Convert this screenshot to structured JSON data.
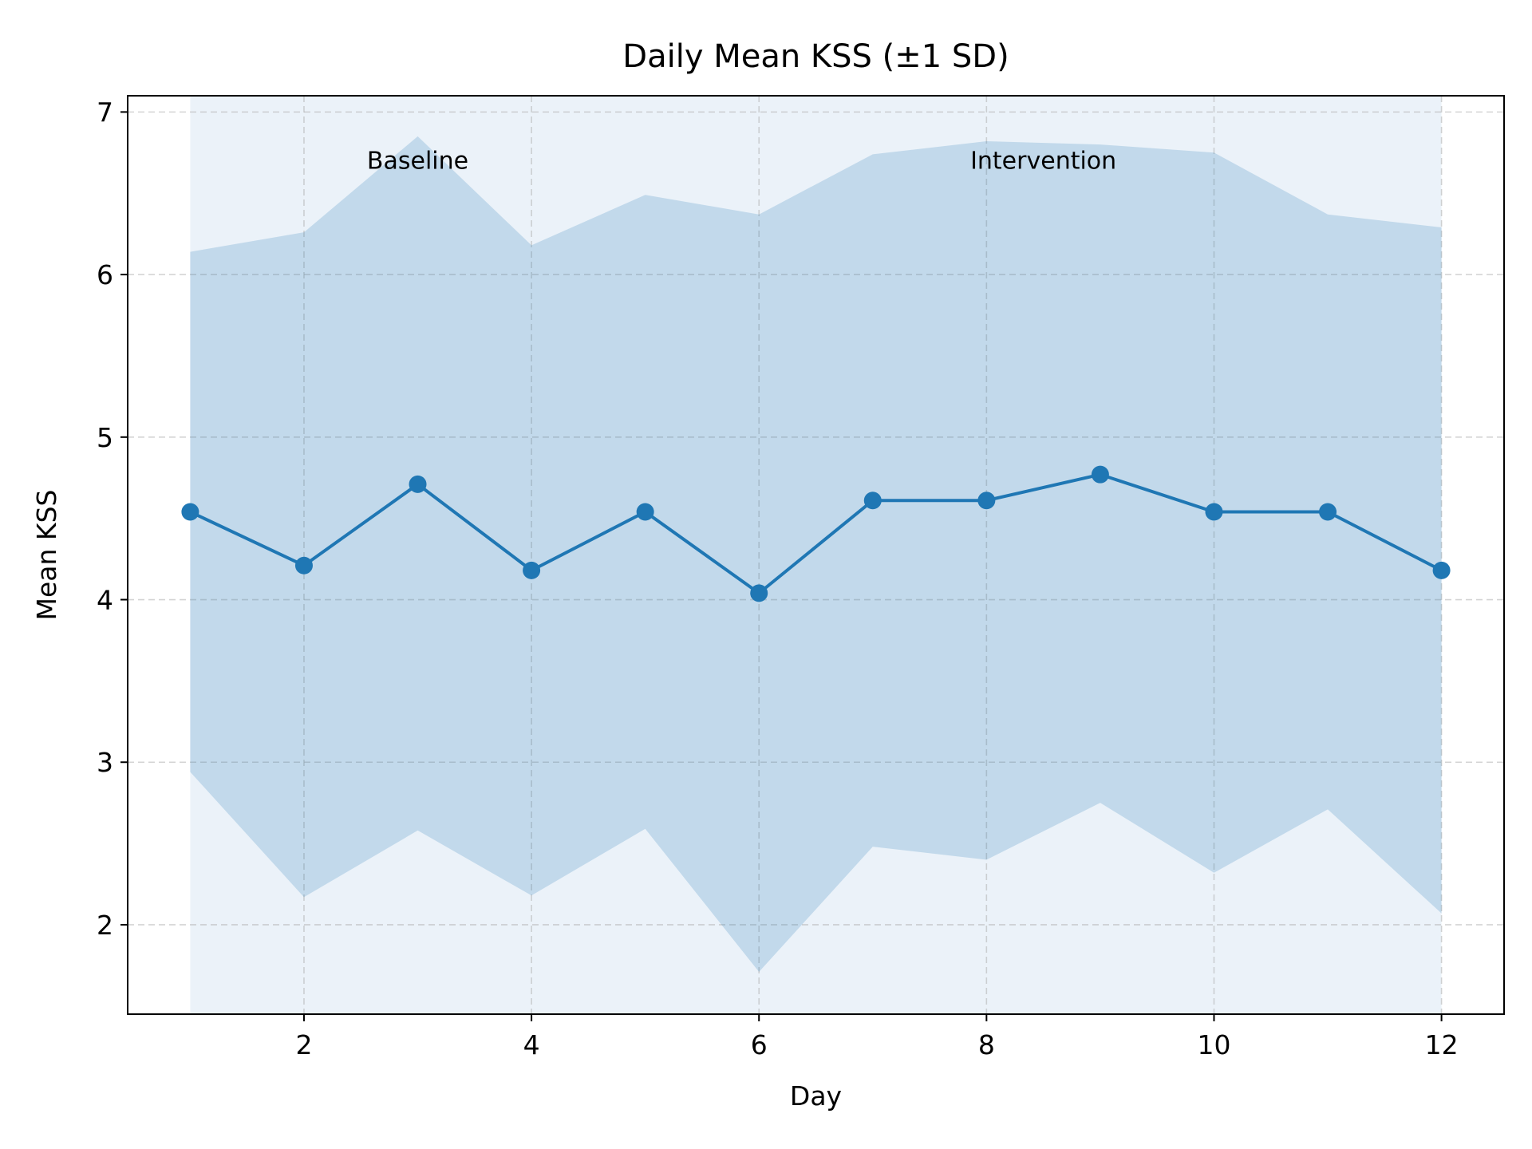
{
  "chart_data": {
    "type": "line",
    "title": "Daily Mean KSS (±1 SD)",
    "xlabel": "Day",
    "ylabel": "Mean KSS",
    "x": [
      1,
      2,
      3,
      4,
      5,
      6,
      7,
      8,
      9,
      10,
      11,
      12
    ],
    "series": [
      {
        "values": [
          4.54,
          4.21,
          4.71,
          4.18,
          4.54,
          4.04,
          4.61,
          4.61,
          4.77,
          4.54,
          4.54,
          4.18
        ],
        "upper": [
          6.14,
          6.26,
          6.85,
          6.18,
          6.49,
          6.37,
          6.74,
          6.82,
          6.8,
          6.75,
          6.37,
          6.29
        ],
        "lower": [
          2.94,
          2.17,
          2.58,
          2.18,
          2.59,
          1.71,
          2.48,
          2.4,
          2.75,
          2.32,
          2.71,
          2.07
        ],
        "color": "#1f77b4"
      }
    ],
    "xticks": [
      "2",
      "4",
      "6",
      "8",
      "10",
      "12"
    ],
    "yticks": [
      "2",
      "3",
      "4",
      "5",
      "6",
      "7"
    ],
    "xlim": [
      0.45,
      12.55
    ],
    "ylim": [
      1.45,
      7.1
    ],
    "grid": true,
    "shaded_range": [
      1,
      12
    ],
    "annotations": [
      {
        "text": "Baseline",
        "x": 3,
        "y": 6.65
      },
      {
        "text": "Intervention",
        "x": 8.5,
        "y": 6.65
      }
    ],
    "colors": {
      "line": "#1f77b4",
      "band": "#1f77b4",
      "phase_shade": "#c6dbef"
    }
  }
}
